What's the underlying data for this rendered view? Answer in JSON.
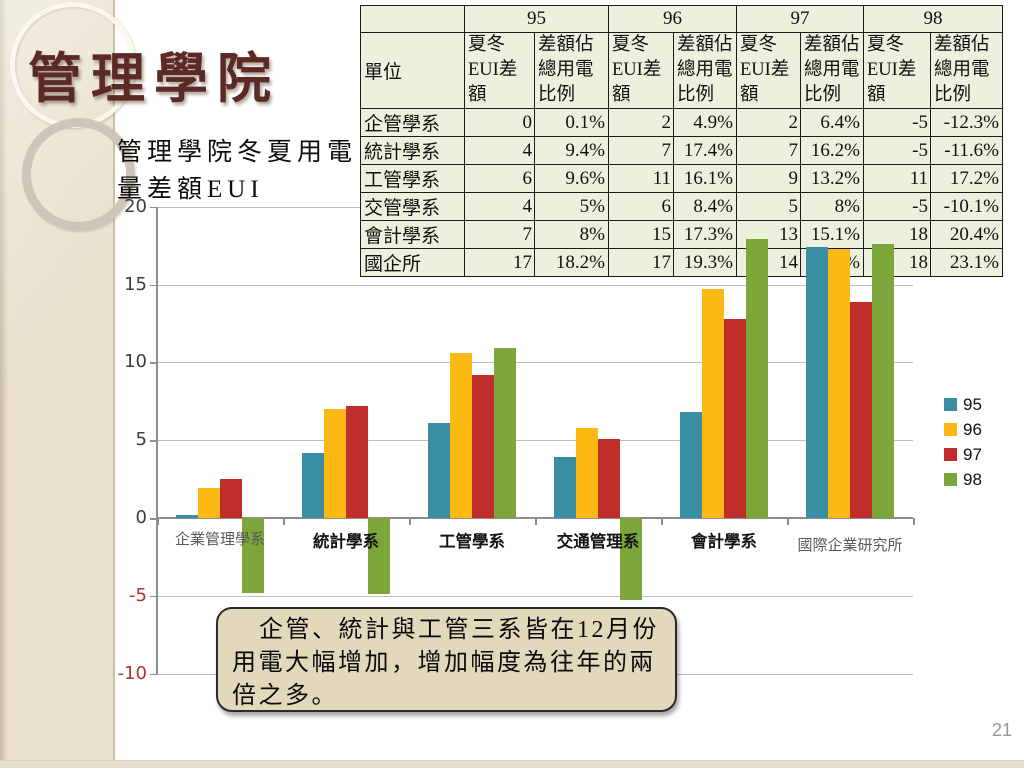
{
  "title": "管理學院",
  "subtitle": "管理學院冬夏用電量差額EUI",
  "page_number": "21",
  "table": {
    "unit_header": "單位",
    "year_headers": [
      "95",
      "96",
      "97",
      "98"
    ],
    "sub_headers": [
      "夏冬EUI差額",
      "差額佔總用電比例"
    ],
    "rows": [
      {
        "name": "企管學系",
        "values": [
          "0",
          "0.1%",
          "2",
          "4.9%",
          "2",
          "6.4%",
          "-5",
          "-12.3%"
        ]
      },
      {
        "name": "統計學系",
        "values": [
          "4",
          "9.4%",
          "7",
          "17.4%",
          "7",
          "16.2%",
          "-5",
          "-11.6%"
        ]
      },
      {
        "name": "工管學系",
        "values": [
          "6",
          "9.6%",
          "11",
          "16.1%",
          "9",
          "13.2%",
          "11",
          "17.2%"
        ]
      },
      {
        "name": "交管學系",
        "values": [
          "4",
          "5%",
          "6",
          "8.4%",
          "5",
          "8%",
          "-5",
          "-10.1%"
        ]
      },
      {
        "name": "會計學系",
        "values": [
          "7",
          "8%",
          "15",
          "17.3%",
          "13",
          "15.1%",
          "18",
          "20.4%"
        ]
      },
      {
        "name": "國企所",
        "values": [
          "17",
          "18.2%",
          "17",
          "19.3%",
          "14",
          "19.1%",
          "18",
          "23.1%"
        ]
      }
    ]
  },
  "chart_data": {
    "type": "bar",
    "title": "",
    "xlabel": "",
    "ylabel": "",
    "categories": [
      "企業管理學系",
      "統計學系",
      "工管學系",
      "交通管理系",
      "會計學系",
      "國際企業研究所"
    ],
    "series": [
      {
        "name": "95",
        "color": "#3A8EA2",
        "values": [
          0.2,
          4.2,
          6.1,
          3.9,
          6.8,
          17.4
        ]
      },
      {
        "name": "96",
        "color": "#FCB813",
        "values": [
          1.9,
          7.0,
          10.6,
          5.8,
          14.7,
          17.3
        ]
      },
      {
        "name": "97",
        "color": "#C02E2B",
        "values": [
          2.5,
          7.2,
          9.2,
          5.1,
          12.8,
          13.9
        ]
      },
      {
        "name": "98",
        "color": "#7CA63A",
        "values": [
          -4.8,
          -4.9,
          10.9,
          -5.3,
          17.9,
          17.6
        ]
      }
    ],
    "ylim": [
      -10,
      20
    ],
    "yticks": [
      20,
      15,
      10,
      5,
      0,
      -5,
      -10
    ],
    "grid": true,
    "legend_position": "right"
  },
  "callout": {
    "text": "企管、統計與工管三系皆在12月份用電大幅增加，增加幅度為往年的兩倍之多。"
  }
}
